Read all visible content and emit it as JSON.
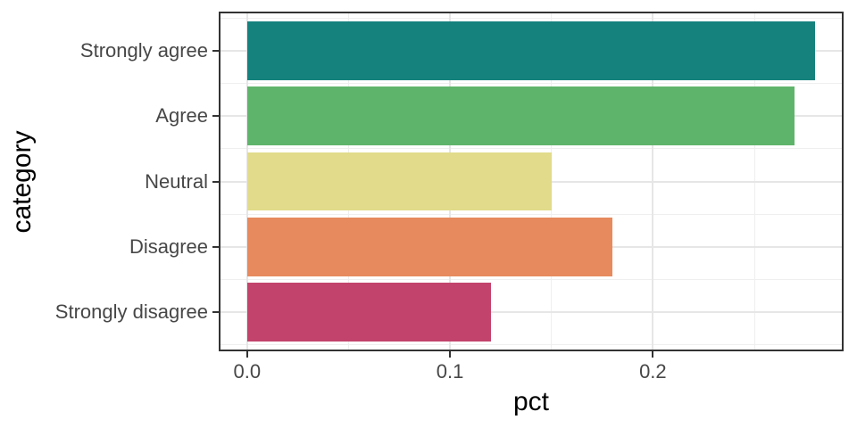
{
  "chart_data": {
    "type": "bar",
    "orientation": "horizontal",
    "xlabel": "pct",
    "ylabel": "category",
    "categories": [
      "Strongly agree",
      "Agree",
      "Neutral",
      "Disagree",
      "Strongly disagree"
    ],
    "categories_order": "top_to_bottom",
    "values": [
      0.28,
      0.27,
      0.15,
      0.18,
      0.12
    ],
    "bar_colors": [
      "#15827E",
      "#5FB46B",
      "#E1DB8B",
      "#E78A5E",
      "#C2436B"
    ],
    "x_major_ticks": [
      0,
      0.1,
      0.2
    ],
    "x_major_tick_labels": [
      "0.0",
      "0.1",
      "0.2"
    ],
    "x_minor_ticks": [
      0.05,
      0.15,
      0.25
    ],
    "xlim": [
      -0.014,
      0.294
    ],
    "bar_fraction": 0.9,
    "outer_expand": 0.6,
    "grid": true,
    "legend": false,
    "colors": {
      "panel_background": "#ffffff",
      "panel_border": "#333333",
      "grid_major": "#e6e6e6",
      "grid_minor": "#efefef",
      "tick_mark": "#333333",
      "axis_text": "#474747",
      "axis_title": "#000000"
    }
  }
}
